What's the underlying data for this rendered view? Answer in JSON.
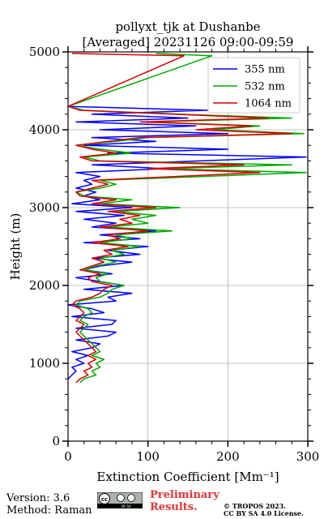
{
  "chart_data": {
    "type": "line",
    "title_line1": "pollyxt_tjk at Dushanbe",
    "title_line2": "[Averaged] 20231126 09:00-09:59",
    "xlabel": "Extinction Coefficient [Mm⁻¹]",
    "ylabel": "Height (m)",
    "xlim": [
      0,
      300
    ],
    "ylim": [
      0,
      5000
    ],
    "xticks": [
      0,
      100,
      200,
      300
    ],
    "yticks": [
      0,
      1000,
      2000,
      3000,
      4000,
      5000
    ],
    "grid": true,
    "legend_position": "top-right",
    "series": [
      {
        "name": "355 nm",
        "color": "#0000ff",
        "points": [
          [
            0,
            800
          ],
          [
            5,
            850
          ],
          [
            10,
            900
          ],
          [
            5,
            950
          ],
          [
            20,
            1000
          ],
          [
            10,
            1050
          ],
          [
            25,
            1100
          ],
          [
            5,
            1150
          ],
          [
            30,
            1200
          ],
          [
            40,
            1250
          ],
          [
            10,
            1300
          ],
          [
            50,
            1350
          ],
          [
            60,
            1400
          ],
          [
            10,
            1450
          ],
          [
            55,
            1500
          ],
          [
            60,
            1550
          ],
          [
            5,
            1600
          ],
          [
            45,
            1650
          ],
          [
            30,
            1700
          ],
          [
            0,
            1750
          ],
          [
            60,
            1800
          ],
          [
            50,
            1850
          ],
          [
            80,
            1900
          ],
          [
            20,
            1950
          ],
          [
            70,
            2000
          ],
          [
            40,
            2050
          ],
          [
            10,
            2100
          ],
          [
            55,
            2150
          ],
          [
            20,
            2200
          ],
          [
            40,
            2250
          ],
          [
            80,
            2300
          ],
          [
            30,
            2350
          ],
          [
            90,
            2400
          ],
          [
            50,
            2450
          ],
          [
            100,
            2500
          ],
          [
            20,
            2550
          ],
          [
            90,
            2600
          ],
          [
            40,
            2650
          ],
          [
            110,
            2700
          ],
          [
            30,
            2750
          ],
          [
            60,
            2800
          ],
          [
            20,
            2850
          ],
          [
            70,
            2900
          ],
          [
            10,
            2950
          ],
          [
            80,
            3000
          ],
          [
            5,
            3050
          ],
          [
            40,
            3100
          ],
          [
            20,
            3150
          ],
          [
            35,
            3200
          ],
          [
            10,
            3250
          ],
          [
            30,
            3300
          ],
          [
            20,
            3350
          ],
          [
            40,
            3400
          ],
          [
            10,
            3450
          ],
          [
            120,
            3500
          ],
          [
            30,
            3550
          ],
          [
            298,
            3650
          ],
          [
            50,
            3700
          ],
          [
            200,
            3750
          ],
          [
            20,
            3800
          ],
          [
            110,
            3850
          ],
          [
            30,
            3900
          ],
          [
            200,
            3950
          ],
          [
            40,
            4000
          ],
          [
            160,
            4050
          ],
          [
            10,
            4100
          ],
          [
            150,
            4150
          ],
          [
            30,
            4200
          ],
          [
            175,
            4250
          ],
          [
            0,
            4300
          ]
        ]
      },
      {
        "name": "532 nm",
        "color": "#00aa00",
        "points": [
          [
            15,
            750
          ],
          [
            20,
            800
          ],
          [
            35,
            850
          ],
          [
            30,
            900
          ],
          [
            40,
            950
          ],
          [
            35,
            1000
          ],
          [
            45,
            1050
          ],
          [
            30,
            1100
          ],
          [
            40,
            1150
          ],
          [
            35,
            1200
          ],
          [
            30,
            1250
          ],
          [
            25,
            1300
          ],
          [
            20,
            1350
          ],
          [
            15,
            1400
          ],
          [
            20,
            1450
          ],
          [
            25,
            1500
          ],
          [
            15,
            1550
          ],
          [
            20,
            1600
          ],
          [
            30,
            1650
          ],
          [
            25,
            1700
          ],
          [
            10,
            1750
          ],
          [
            15,
            1800
          ],
          [
            40,
            1850
          ],
          [
            50,
            1900
          ],
          [
            55,
            1950
          ],
          [
            70,
            2000
          ],
          [
            40,
            2050
          ],
          [
            35,
            2100
          ],
          [
            50,
            2150
          ],
          [
            20,
            2200
          ],
          [
            35,
            2250
          ],
          [
            60,
            2300
          ],
          [
            40,
            2350
          ],
          [
            70,
            2400
          ],
          [
            55,
            2450
          ],
          [
            90,
            2500
          ],
          [
            40,
            2550
          ],
          [
            80,
            2600
          ],
          [
            60,
            2650
          ],
          [
            130,
            2700
          ],
          [
            50,
            2750
          ],
          [
            100,
            2800
          ],
          [
            80,
            2850
          ],
          [
            110,
            2900
          ],
          [
            60,
            2950
          ],
          [
            140,
            3000
          ],
          [
            40,
            3050
          ],
          [
            80,
            3100
          ],
          [
            20,
            3150
          ],
          [
            10,
            3200
          ],
          [
            40,
            3250
          ],
          [
            60,
            3300
          ],
          [
            40,
            3350
          ],
          [
            298,
            3450
          ],
          [
            120,
            3500
          ],
          [
            280,
            3550
          ],
          [
            40,
            3600
          ],
          [
            20,
            3650
          ],
          [
            80,
            3700
          ],
          [
            40,
            3750
          ],
          [
            10,
            3800
          ],
          [
            60,
            3850
          ],
          [
            100,
            3900
          ],
          [
            295,
            3950
          ],
          [
            180,
            4000
          ],
          [
            240,
            4050
          ],
          [
            100,
            4100
          ],
          [
            280,
            4150
          ],
          [
            140,
            4200
          ],
          [
            20,
            4250
          ],
          [
            0,
            4300
          ],
          [
            180,
            4950
          ],
          [
            110,
            4980
          ]
        ]
      },
      {
        "name": "1064 nm",
        "color": "#dd0000",
        "points": [
          [
            10,
            750
          ],
          [
            15,
            800
          ],
          [
            25,
            850
          ],
          [
            20,
            900
          ],
          [
            30,
            950
          ],
          [
            25,
            1000
          ],
          [
            35,
            1050
          ],
          [
            25,
            1100
          ],
          [
            35,
            1150
          ],
          [
            30,
            1200
          ],
          [
            25,
            1250
          ],
          [
            20,
            1300
          ],
          [
            15,
            1350
          ],
          [
            10,
            1400
          ],
          [
            15,
            1450
          ],
          [
            20,
            1500
          ],
          [
            10,
            1550
          ],
          [
            15,
            1600
          ],
          [
            20,
            1650
          ],
          [
            15,
            1700
          ],
          [
            5,
            1750
          ],
          [
            10,
            1800
          ],
          [
            30,
            1850
          ],
          [
            40,
            1900
          ],
          [
            45,
            1950
          ],
          [
            55,
            2000
          ],
          [
            30,
            2050
          ],
          [
            25,
            2100
          ],
          [
            40,
            2150
          ],
          [
            15,
            2200
          ],
          [
            30,
            2250
          ],
          [
            45,
            2300
          ],
          [
            30,
            2350
          ],
          [
            55,
            2400
          ],
          [
            45,
            2450
          ],
          [
            75,
            2500
          ],
          [
            30,
            2550
          ],
          [
            65,
            2600
          ],
          [
            50,
            2650
          ],
          [
            100,
            2700
          ],
          [
            40,
            2750
          ],
          [
            80,
            2800
          ],
          [
            65,
            2850
          ],
          [
            90,
            2900
          ],
          [
            50,
            2950
          ],
          [
            110,
            3000
          ],
          [
            30,
            3050
          ],
          [
            60,
            3100
          ],
          [
            15,
            3150
          ],
          [
            10,
            3200
          ],
          [
            30,
            3250
          ],
          [
            50,
            3300
          ],
          [
            30,
            3350
          ],
          [
            240,
            3450
          ],
          [
            100,
            3500
          ],
          [
            220,
            3550
          ],
          [
            30,
            3600
          ],
          [
            15,
            3650
          ],
          [
            60,
            3700
          ],
          [
            30,
            3750
          ],
          [
            10,
            3800
          ],
          [
            50,
            3850
          ],
          [
            90,
            3900
          ],
          [
            280,
            3950
          ],
          [
            160,
            4000
          ],
          [
            230,
            4050
          ],
          [
            90,
            4100
          ],
          [
            250,
            4150
          ],
          [
            130,
            4200
          ],
          [
            15,
            4250
          ],
          [
            0,
            4300
          ],
          [
            145,
            4950
          ],
          [
            5,
            4980
          ]
        ]
      }
    ]
  },
  "footer": {
    "version": "Version: 3.6",
    "method": "Method: Raman",
    "preliminary_line1": "Preliminary",
    "preliminary_line2": "Results.",
    "copyright_line1": "© TROPOS 2023.",
    "copyright_line2": "CC BY SA 4.0 License.",
    "badge_text": "BY SA"
  }
}
